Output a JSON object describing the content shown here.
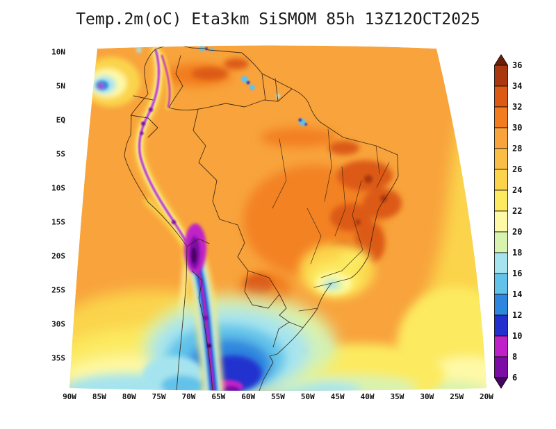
{
  "title": "Temp.2m(oC) Eta3km SiSMOM 85h 13Z12OCT2025",
  "axes": {
    "lat_labels": [
      "10N",
      "5N",
      "EQ",
      "5S",
      "10S",
      "15S",
      "20S",
      "25S",
      "30S",
      "35S"
    ],
    "lon_labels": [
      "90W",
      "85W",
      "80W",
      "75W",
      "70W",
      "65W",
      "60W",
      "55W",
      "50W",
      "45W",
      "40W",
      "35W",
      "30W",
      "25W",
      "20W"
    ]
  },
  "colorbar": {
    "tick_labels": [
      "36",
      "34",
      "32",
      "30",
      "28",
      "26",
      "24",
      "22",
      "20",
      "18",
      "16",
      "14",
      "12",
      "10",
      "8",
      "6"
    ],
    "colors_top_to_bottom": [
      "#6E1E05",
      "#A9380E",
      "#DC5A14",
      "#F27C1E",
      "#F8A33C",
      "#FABD45",
      "#FBD44C",
      "#FCEA61",
      "#FEF9A6",
      "#D8F3AE",
      "#A5E4EF",
      "#62C2E9",
      "#2F86DE",
      "#2430CE",
      "#C020C8",
      "#7C0EA6",
      "#45065F"
    ]
  },
  "chart_data": {
    "type": "heatmap",
    "title": "Temp.2m(oC) Eta3km SiSMOM 85h 13Z12OCT2025",
    "variable": "Temp.2m",
    "units": "oC",
    "model": "Eta3km SiSMOM",
    "forecast_hour": "85h",
    "datetime": "13Z12OCT2025",
    "region": "South America",
    "lon_ticks": [
      "90W",
      "85W",
      "80W",
      "75W",
      "70W",
      "65W",
      "60W",
      "55W",
      "50W",
      "45W",
      "40W",
      "35W",
      "30W",
      "25W",
      "20W"
    ],
    "lat_ticks": [
      "10N",
      "5N",
      "EQ",
      "5S",
      "10S",
      "15S",
      "20S",
      "25S",
      "30S",
      "35S"
    ],
    "levels_c": [
      6,
      8,
      10,
      12,
      14,
      16,
      18,
      20,
      22,
      24,
      26,
      28,
      30,
      32,
      34,
      36
    ],
    "legend_position": "right",
    "features": [
      "Widespread 28-30C over the Amazon basin and tropical oceans",
      "Hot cores 30-34C over interior northeast Brazil, central Brazil and the Llanos",
      "Narrow cold strip 6-14C along the Andes with sub-6C purple cores",
      "Cold pool 10-20C over the southern Andes and Patagonia reaching the bottom edge",
      "Yellow 22-26C band along the eastern and southern edges of the domain",
      "Small cool cyan patch on the southeast Brazil highlands"
    ]
  }
}
